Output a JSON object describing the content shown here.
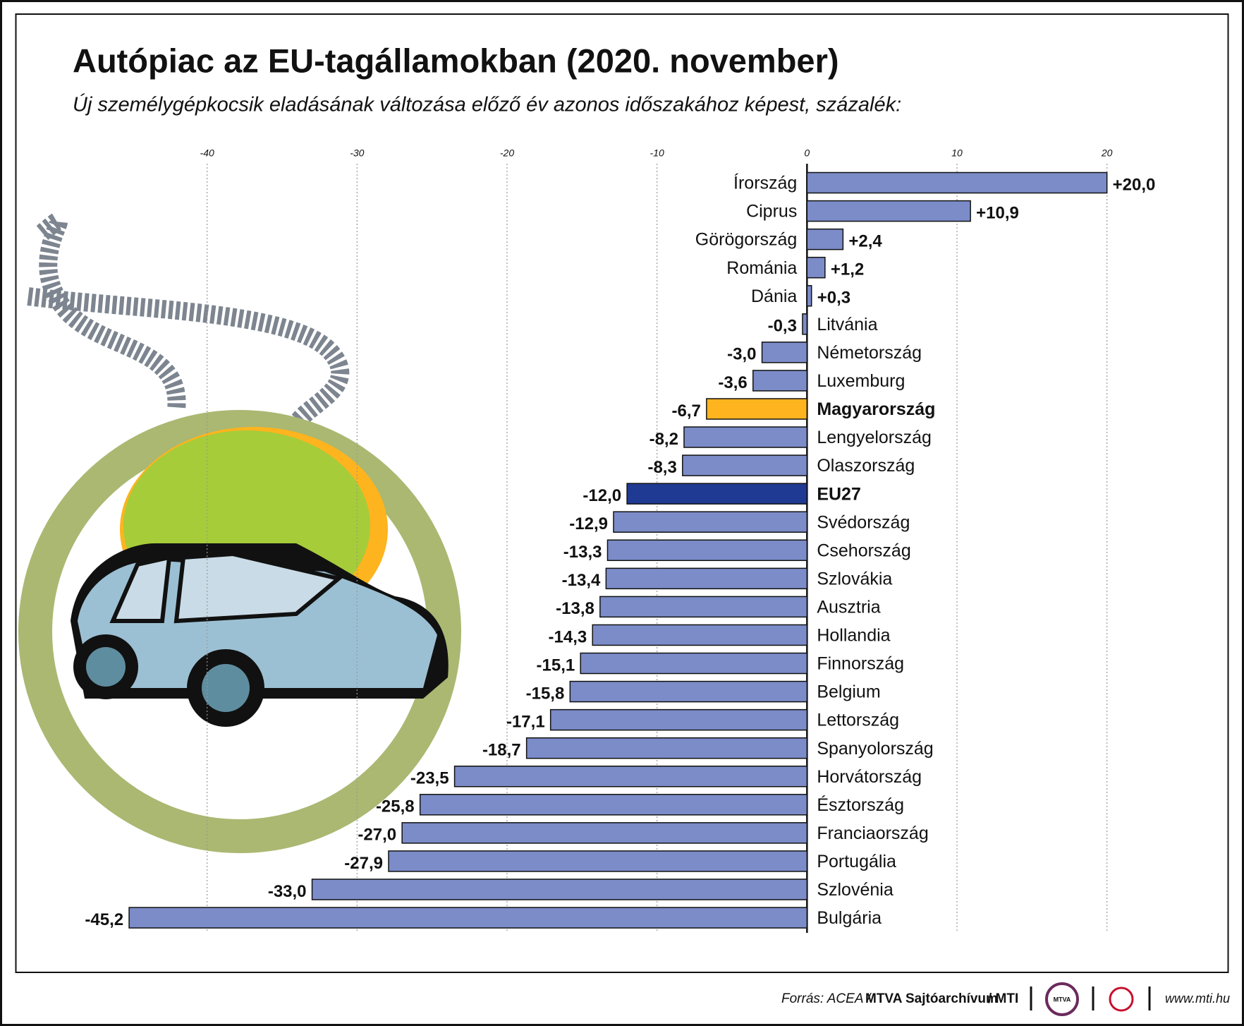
{
  "chart_data": {
    "type": "hbar",
    "title": "Autópiac az EU-tagállamokban (2020. november)",
    "subtitle": "Új személygépkocsik eladásának változása előző év azonos időszakához képest, százalék:",
    "categories": [
      "Írország",
      "Ciprus",
      "Görögország",
      "Románia",
      "Dánia",
      "Litvánia",
      "Németország",
      "Luxemburg",
      "Magyarország",
      "Lengyelország",
      "Olaszország",
      "EU27",
      "Svédország",
      "Csehország",
      "Szlovákia",
      "Ausztria",
      "Hollandia",
      "Finnország",
      "Belgium",
      "Lettország",
      "Spanyolország",
      "Horvátország",
      "Észtország",
      "Franciaország",
      "Portugália",
      "Szlovénia",
      "Bulgária"
    ],
    "values": [
      20.0,
      10.9,
      2.4,
      1.2,
      0.3,
      -0.3,
      -3.0,
      -3.6,
      -6.7,
      -8.2,
      -8.3,
      -12.0,
      -12.9,
      -13.3,
      -13.4,
      -13.8,
      -14.3,
      -15.1,
      -15.8,
      -17.1,
      -18.7,
      -23.5,
      -25.8,
      -27.0,
      -27.9,
      -33.0,
      -45.2
    ],
    "value_labels": [
      "+20,0",
      "+10,9",
      "+2,4",
      "+1,2",
      "+0,3",
      "-0,3",
      "-3,0",
      "-3,6",
      "-6,7",
      "-8,2",
      "-8,3",
      "-12,0",
      "-12,9",
      "-13,3",
      "-13,4",
      "-13,8",
      "-14,3",
      "-15,1",
      "-15,8",
      "-17,1",
      "-18,7",
      "-23,5",
      "-25,8",
      "-27,0",
      "-27,9",
      "-33,0",
      "-45,2"
    ],
    "color": "#7b8cc8",
    "colors": {
      "Magyarország": "#fdb41e",
      "EU27": "#1f3a93"
    },
    "xlim": [
      -50,
      25
    ],
    "xticks": [
      -40,
      -30,
      -20,
      -10,
      0,
      10,
      20
    ],
    "grid": true
  },
  "footer": {
    "source": "Forrás: ACEA /",
    "archive": "MTVA Sajtóarchívum",
    "agency": "/ MTI",
    "logo": "MTVA",
    "url": "www.mti.hu"
  }
}
